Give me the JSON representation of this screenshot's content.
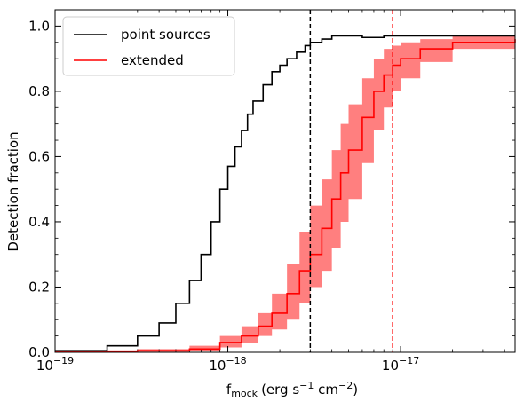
{
  "chart_data": {
    "type": "line",
    "title": "",
    "xlabel": "f",
    "xlabel_sub": "mock",
    "xlabel_units": "(erg s",
    "xlabel_exp1": "−1",
    "xlabel_mid": " cm",
    "xlabel_exp2": "−2",
    "xlabel_end": ")",
    "ylabel": "Detection fraction",
    "x_scale": "log",
    "xlim": [
      1e-19,
      4.6e-17
    ],
    "ylim": [
      0,
      1.05
    ],
    "x_ticks": [
      {
        "value": 1e-19,
        "base": "10",
        "exp": "−19"
      },
      {
        "value": 1e-18,
        "base": "10",
        "exp": "−18"
      },
      {
        "value": 1e-17,
        "base": "10",
        "exp": "−17"
      }
    ],
    "y_ticks": [
      {
        "value": 0.0,
        "label": "0.0"
      },
      {
        "value": 0.2,
        "label": "0.2"
      },
      {
        "value": 0.4,
        "label": "0.4"
      },
      {
        "value": 0.6,
        "label": "0.6"
      },
      {
        "value": 0.8,
        "label": "0.8"
      },
      {
        "value": 1.0,
        "label": "1.0"
      }
    ],
    "legend_position": "top-left",
    "series": [
      {
        "name": "point sources",
        "color": "#000000",
        "style": "step",
        "x": [
          1e-19,
          2e-19,
          3e-19,
          4e-19,
          5e-19,
          6e-19,
          7e-19,
          8e-19,
          9e-19,
          1e-18,
          1.1e-18,
          1.2e-18,
          1.3e-18,
          1.4e-18,
          1.6e-18,
          1.8e-18,
          2e-18,
          2.2e-18,
          2.5e-18,
          2.8e-18,
          3e-18,
          3.5e-18,
          4e-18,
          5e-18,
          6e-18,
          8e-18,
          1e-17,
          2e-17,
          4.6e-17
        ],
        "y": [
          0.005,
          0.02,
          0.05,
          0.09,
          0.15,
          0.22,
          0.3,
          0.4,
          0.5,
          0.57,
          0.63,
          0.68,
          0.73,
          0.77,
          0.82,
          0.86,
          0.88,
          0.9,
          0.92,
          0.94,
          0.95,
          0.96,
          0.97,
          0.97,
          0.965,
          0.97,
          0.97,
          0.97,
          0.97
        ]
      },
      {
        "name": "extended",
        "color": "#ff0000",
        "band_color": "#ff7f7f",
        "style": "step",
        "x": [
          1e-19,
          3e-19,
          6e-19,
          9e-19,
          1.2e-18,
          1.5e-18,
          1.8e-18,
          2.2e-18,
          2.6e-18,
          3e-18,
          3.5e-18,
          4e-18,
          4.5e-18,
          5e-18,
          6e-18,
          7e-18,
          8e-18,
          9e-18,
          1e-17,
          1.3e-17,
          2e-17,
          4.6e-17
        ],
        "y": [
          0.003,
          0.005,
          0.01,
          0.03,
          0.05,
          0.08,
          0.12,
          0.18,
          0.25,
          0.3,
          0.38,
          0.47,
          0.55,
          0.62,
          0.72,
          0.8,
          0.85,
          0.88,
          0.9,
          0.93,
          0.95,
          0.96
        ],
        "y_low": [
          0.0,
          0.0,
          0.003,
          0.015,
          0.03,
          0.05,
          0.07,
          0.1,
          0.15,
          0.2,
          0.25,
          0.32,
          0.4,
          0.47,
          0.58,
          0.68,
          0.75,
          0.8,
          0.84,
          0.89,
          0.93,
          0.95
        ],
        "y_high": [
          0.006,
          0.01,
          0.02,
          0.05,
          0.08,
          0.12,
          0.18,
          0.27,
          0.37,
          0.45,
          0.53,
          0.62,
          0.7,
          0.76,
          0.84,
          0.9,
          0.93,
          0.94,
          0.95,
          0.96,
          0.97,
          0.98
        ]
      }
    ],
    "vlines": [
      {
        "x": 3e-18,
        "color": "#000000",
        "dash": true
      },
      {
        "x": 9e-18,
        "color": "#ff0000",
        "dash": true
      }
    ]
  }
}
